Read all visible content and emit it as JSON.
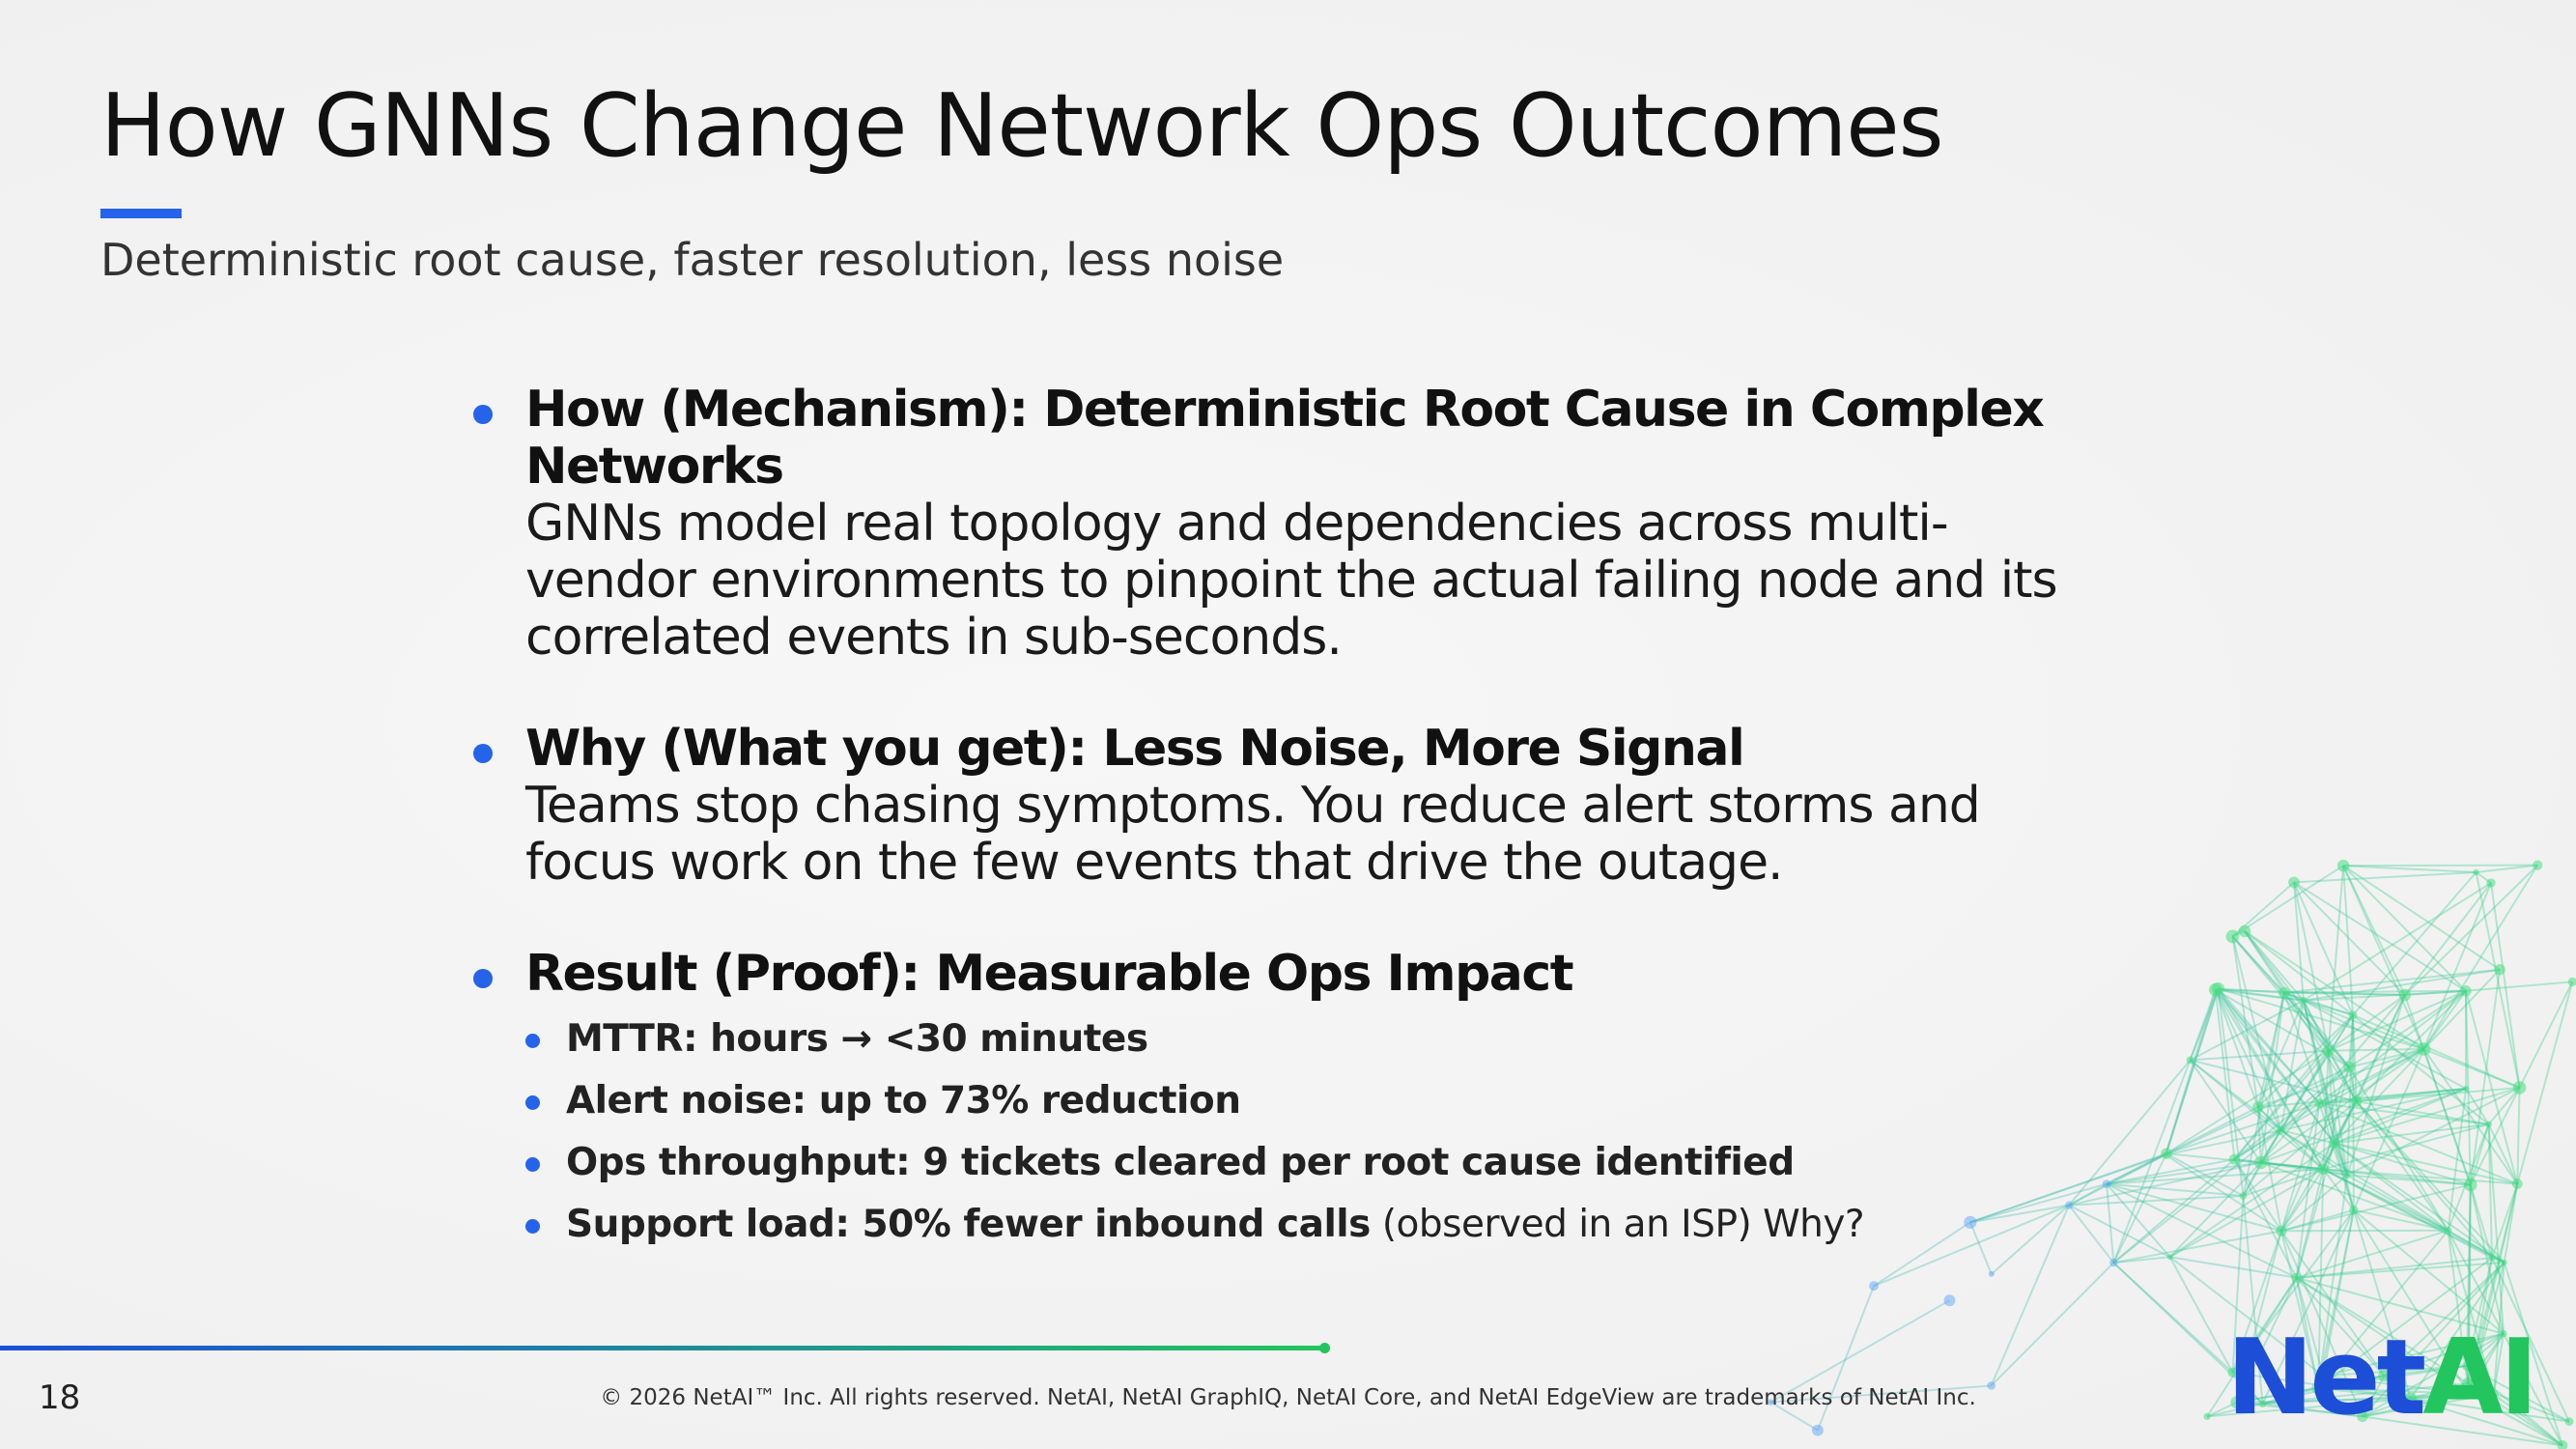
{
  "header": {
    "title": "How GNNs Change Network Ops Outcomes",
    "subtitle": "Deterministic root cause, faster resolution, less noise"
  },
  "bullets": [
    {
      "heading": "How (Mechanism): Deterministic Root Cause in Complex Networks",
      "body": "GNNs model real topology and dependencies across multi-vendor environments to pinpoint the actual failing node and its correlated events in sub-seconds."
    },
    {
      "heading": "Why (What you get): Less Noise, More Signal",
      "body": "Teams stop chasing symptoms. You reduce alert storms and focus work on the few events that drive the outage."
    },
    {
      "heading": "Result (Proof): Measurable Ops Impact",
      "subitems": [
        {
          "bold": "MTTR: hours → <30 minutes"
        },
        {
          "bold": "Alert noise: up to 73% reduction"
        },
        {
          "bold": "Ops throughput: 9 tickets cleared per root cause identified"
        },
        {
          "bold": "Support load: 50% fewer inbound calls",
          "text": "(observed in an ISP) Why?"
        }
      ]
    }
  ],
  "footer": {
    "page_number": "18",
    "copyright": "© 2026 NetAI™ Inc. All rights reserved. NetAI, NetAI GraphIQ, NetAI Core, and NetAI EdgeView are trademarks of NetAI Inc.",
    "logo": {
      "net": "Net",
      "ai": "AI"
    }
  }
}
